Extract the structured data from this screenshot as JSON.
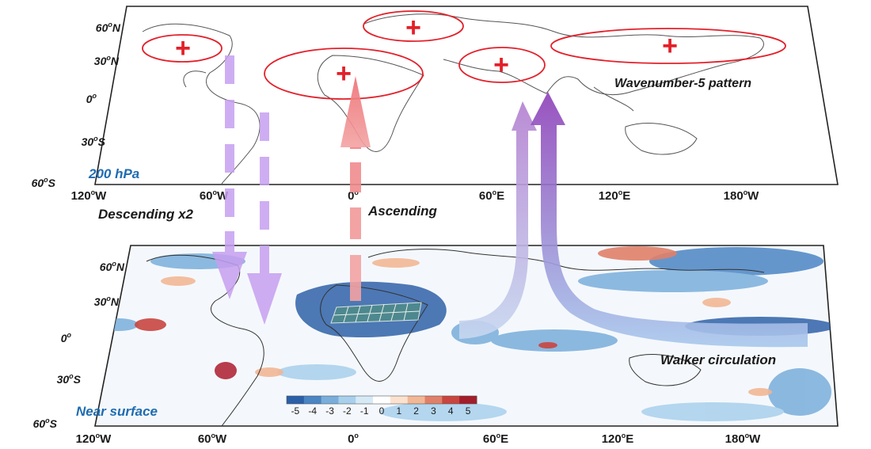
{
  "upper_panel": {
    "level_label": "200 hPa",
    "pattern_label": "Wavenumber-5 pattern",
    "lat_labels": [
      {
        "deg": "60",
        "hemi": "N"
      },
      {
        "deg": "30",
        "hemi": "N"
      },
      {
        "deg": "0",
        "hemi": ""
      },
      {
        "deg": "30",
        "hemi": "S"
      },
      {
        "deg": "60",
        "hemi": "S"
      }
    ],
    "centers_symbol": "+"
  },
  "lower_panel": {
    "level_label": "Near surface",
    "lat_labels": [
      {
        "deg": "60",
        "hemi": "N"
      },
      {
        "deg": "30",
        "hemi": "N"
      },
      {
        "deg": "0",
        "hemi": ""
      },
      {
        "deg": "30",
        "hemi": "S"
      },
      {
        "deg": "60",
        "hemi": "S"
      }
    ]
  },
  "lon_labels": [
    {
      "deg": "120",
      "hemi": "W"
    },
    {
      "deg": "60",
      "hemi": "W"
    },
    {
      "deg": "0",
      "hemi": ""
    },
    {
      "deg": "60",
      "hemi": "E"
    },
    {
      "deg": "120",
      "hemi": "E"
    },
    {
      "deg": "180",
      "hemi": "W"
    }
  ],
  "annotations": {
    "descending": "Descending x2",
    "ascending": "Ascending",
    "walker": "Walker circulation"
  },
  "colorbar": {
    "ticks": [
      "-5",
      "-4",
      "-3",
      "-2",
      "-1",
      "0",
      "1",
      "2",
      "3",
      "4",
      "5"
    ],
    "colors": [
      "#2b5fa8",
      "#4a85c4",
      "#79aedb",
      "#a8d0ec",
      "#d6eaf6",
      "#ffffff",
      "#fbe2cf",
      "#f2b795",
      "#e0806a",
      "#c9453f",
      "#a31d2a"
    ]
  },
  "colors": {
    "centers": "#e3202a",
    "descending_arrows": "#c79ff0",
    "ascending_arrow": "#f07f82",
    "walker_arrow": "#9a5cc0",
    "level_label": "#1f6cb0"
  }
}
